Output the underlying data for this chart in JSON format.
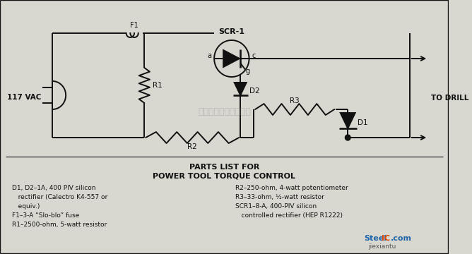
{
  "title_line1": "PARTS LIST FOR",
  "title_line2": "POWER TOOL TORQUE CONTROL",
  "parts_list_left": [
    "D1, D2–1A, 400 PIV silicon",
    "   rectifier (Calectro K4-557 or",
    "   equiv.)",
    "F1–3-A “Slo-blo” fuse",
    "R1–2500-ohm, 5-watt resistor"
  ],
  "parts_list_right": [
    "R2–250-ohm, 4-watt potentiometer",
    "R3–33-ohm, ½-watt resistor",
    "SCR1–8-A, 400-PIV silicon",
    "   controlled rectifier (HEP R1222)"
  ],
  "watermark": "杭州譄督科技有限公司",
  "bg_color": "#d8d8d0",
  "line_color": "#111111",
  "label_fontsize": 6.5,
  "title_fontsize": 8.0,
  "scr_label": "SCR-1",
  "ac_label": "117 VAC",
  "drill_label": "TO DRILL"
}
